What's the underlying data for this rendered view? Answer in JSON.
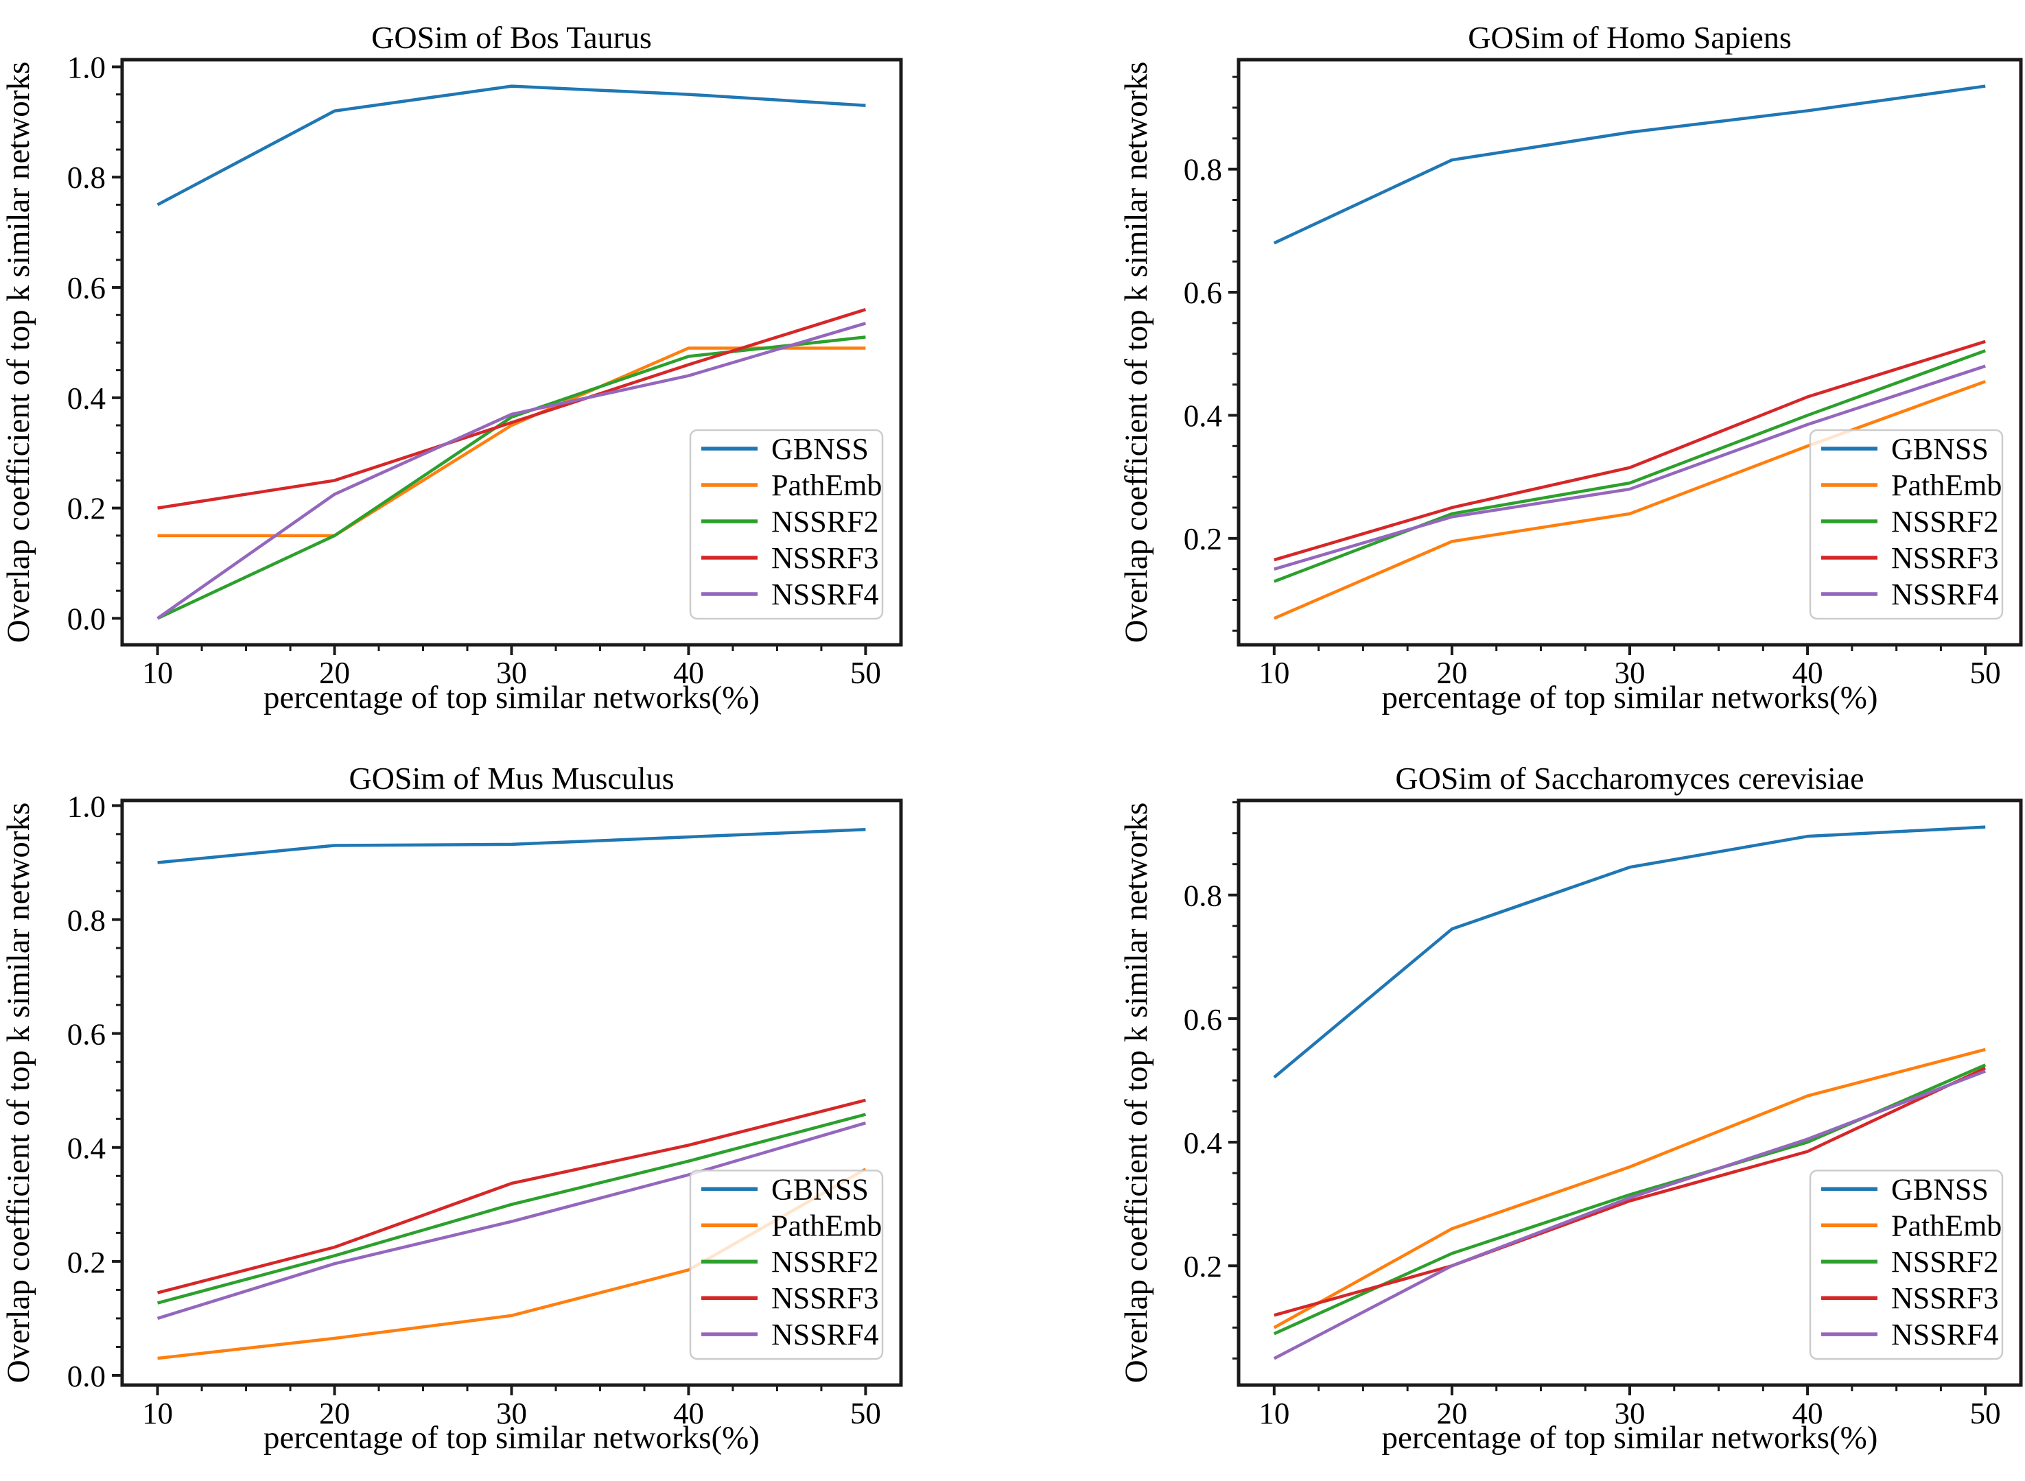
{
  "figure": {
    "background": "#ffffff",
    "text_color": "#000000",
    "spine_color": "#1a1a1a",
    "legend_border_color": "#cccccc",
    "legend_fill": "rgba(255,255,255,0.8)",
    "legend_entries": [
      "GBNSS",
      "PathEmb",
      "NSSRF2",
      "NSSRF3",
      "NSSRF4"
    ],
    "series_colors": {
      "GBNSS": "#1f77b4",
      "PathEmb": "#ff7f0e",
      "NSSRF2": "#2ca02c",
      "NSSRF3": "#d62728",
      "NSSRF4": "#9467bd"
    }
  },
  "chart_data": [
    {
      "id": "bos-taurus",
      "type": "line",
      "title": "GOSim of Bos Taurus",
      "xlabel": "percentage of top similar networks(%)",
      "ylabel": "Overlap coefficient of top k similar networks",
      "x": [
        10,
        20,
        30,
        40,
        50
      ],
      "xtick_labels": [
        "10",
        "20",
        "30",
        "40",
        "50"
      ],
      "xlim": [
        8,
        52
      ],
      "ylim": [
        -0.048,
        1.013
      ],
      "yticks": [
        0.0,
        0.2,
        0.4,
        0.6,
        0.8,
        1.0
      ],
      "ytick_labels": [
        "0.0",
        "0.2",
        "0.4",
        "0.6",
        "0.8",
        "1.0"
      ],
      "grid": false,
      "legend_position": "lower right",
      "series": [
        {
          "name": "GBNSS",
          "values": [
            0.75,
            0.92,
            0.965,
            0.95,
            0.93
          ]
        },
        {
          "name": "PathEmb",
          "values": [
            0.15,
            0.15,
            0.35,
            0.49,
            0.49
          ]
        },
        {
          "name": "NSSRF2",
          "values": [
            0.0,
            0.15,
            0.365,
            0.475,
            0.51
          ]
        },
        {
          "name": "NSSRF3",
          "values": [
            0.2,
            0.25,
            0.355,
            0.46,
            0.56
          ]
        },
        {
          "name": "NSSRF4",
          "values": [
            0.0,
            0.225,
            0.37,
            0.44,
            0.535
          ]
        }
      ]
    },
    {
      "id": "homo-sapiens",
      "type": "line",
      "title": "GOSim of Homo Sapiens",
      "xlabel": "percentage of top similar networks(%)",
      "ylabel": "Overlap coefficient of top k similar networks",
      "x": [
        10,
        20,
        30,
        40,
        50
      ],
      "xtick_labels": [
        "10",
        "20",
        "30",
        "40",
        "50"
      ],
      "xlim": [
        8,
        52
      ],
      "ylim": [
        0.027,
        0.978
      ],
      "yticks": [
        0.2,
        0.4,
        0.6,
        0.8
      ],
      "ytick_labels": [
        "0.2",
        "0.4",
        "0.6",
        "0.8"
      ],
      "grid": false,
      "legend_position": "lower right",
      "series": [
        {
          "name": "GBNSS",
          "values": [
            0.68,
            0.815,
            0.86,
            0.895,
            0.935
          ]
        },
        {
          "name": "PathEmb",
          "values": [
            0.07,
            0.195,
            0.24,
            0.35,
            0.455
          ]
        },
        {
          "name": "NSSRF2",
          "values": [
            0.13,
            0.24,
            0.29,
            0.4,
            0.505
          ]
        },
        {
          "name": "NSSRF3",
          "values": [
            0.165,
            0.25,
            0.315,
            0.43,
            0.52
          ]
        },
        {
          "name": "NSSRF4",
          "values": [
            0.15,
            0.235,
            0.28,
            0.385,
            0.48
          ]
        }
      ]
    },
    {
      "id": "mus-musculus",
      "type": "line",
      "title": "GOSim of Mus Musculus",
      "xlabel": "percentage of top similar networks(%)",
      "ylabel": "Overlap coefficient of top k similar networks",
      "x": [
        10,
        20,
        30,
        40,
        50
      ],
      "xtick_labels": [
        "10",
        "20",
        "30",
        "40",
        "50"
      ],
      "xlim": [
        8,
        52
      ],
      "ylim": [
        -0.017,
        1.009
      ],
      "yticks": [
        0.0,
        0.2,
        0.4,
        0.6,
        0.8,
        1.0
      ],
      "ytick_labels": [
        "0.0",
        "0.2",
        "0.4",
        "0.6",
        "0.8",
        "1.0"
      ],
      "grid": false,
      "legend_position": "lower right",
      "series": [
        {
          "name": "GBNSS",
          "values": [
            0.9,
            0.93,
            0.932,
            0.945,
            0.958
          ]
        },
        {
          "name": "PathEmb",
          "values": [
            0.03,
            0.065,
            0.105,
            0.185,
            0.362
          ]
        },
        {
          "name": "NSSRF2",
          "values": [
            0.127,
            0.21,
            0.3,
            0.376,
            0.458
          ]
        },
        {
          "name": "NSSRF3",
          "values": [
            0.145,
            0.225,
            0.337,
            0.404,
            0.483
          ]
        },
        {
          "name": "NSSRF4",
          "values": [
            0.1,
            0.196,
            0.27,
            0.352,
            0.443
          ]
        }
      ]
    },
    {
      "id": "saccharomyces-cerevisiae",
      "type": "line",
      "title": "GOSim of Saccharomyces cerevisiae",
      "xlabel": "percentage of top similar networks(%)",
      "ylabel": "Overlap coefficient of top k similar networks",
      "x": [
        10,
        20,
        30,
        40,
        50
      ],
      "xtick_labels": [
        "10",
        "20",
        "30",
        "40",
        "50"
      ],
      "xlim": [
        8,
        52
      ],
      "ylim": [
        0.007,
        0.953
      ],
      "yticks": [
        0.2,
        0.4,
        0.6,
        0.8
      ],
      "ytick_labels": [
        "0.2",
        "0.4",
        "0.6",
        "0.8"
      ],
      "grid": false,
      "legend_position": "lower right",
      "series": [
        {
          "name": "GBNSS",
          "values": [
            0.505,
            0.745,
            0.845,
            0.895,
            0.91
          ]
        },
        {
          "name": "PathEmb",
          "values": [
            0.1,
            0.26,
            0.36,
            0.475,
            0.55
          ]
        },
        {
          "name": "NSSRF2",
          "values": [
            0.09,
            0.22,
            0.315,
            0.4,
            0.525
          ]
        },
        {
          "name": "NSSRF3",
          "values": [
            0.12,
            0.2,
            0.305,
            0.385,
            0.52
          ]
        },
        {
          "name": "NSSRF4",
          "values": [
            0.05,
            0.2,
            0.31,
            0.405,
            0.515
          ]
        }
      ]
    }
  ]
}
